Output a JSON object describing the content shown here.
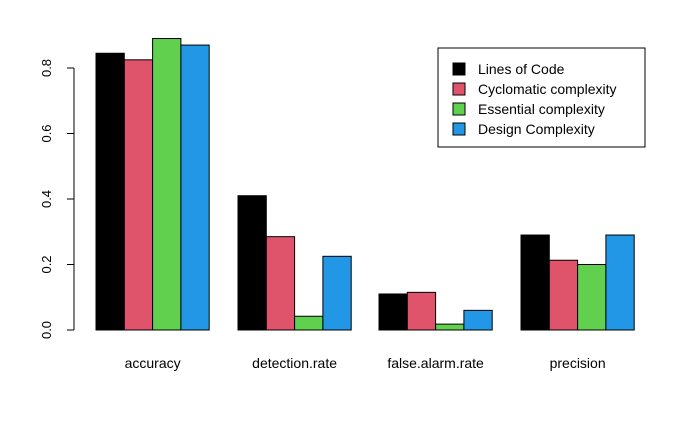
{
  "chart_data": {
    "type": "bar",
    "grouping": "grouped",
    "categories": [
      "accuracy",
      "detection.rate",
      "false.alarm.rate",
      "precision"
    ],
    "series": [
      {
        "name": "Lines of Code",
        "color": "#000000",
        "values": [
          0.845,
          0.41,
          0.11,
          0.29
        ]
      },
      {
        "name": "Cyclomatic complexity",
        "color": "#DF536B",
        "values": [
          0.825,
          0.285,
          0.115,
          0.213
        ]
      },
      {
        "name": "Essential complexity",
        "color": "#61D04F",
        "values": [
          0.89,
          0.042,
          0.018,
          0.2
        ]
      },
      {
        "name": "Design Complexity",
        "color": "#2297E6",
        "values": [
          0.87,
          0.225,
          0.06,
          0.29
        ]
      }
    ],
    "yticks": [
      "0.0",
      "0.2",
      "0.4",
      "0.6",
      "0.8"
    ],
    "ylim": [
      0,
      0.9
    ],
    "grid": false,
    "legend_position": "top-right"
  }
}
